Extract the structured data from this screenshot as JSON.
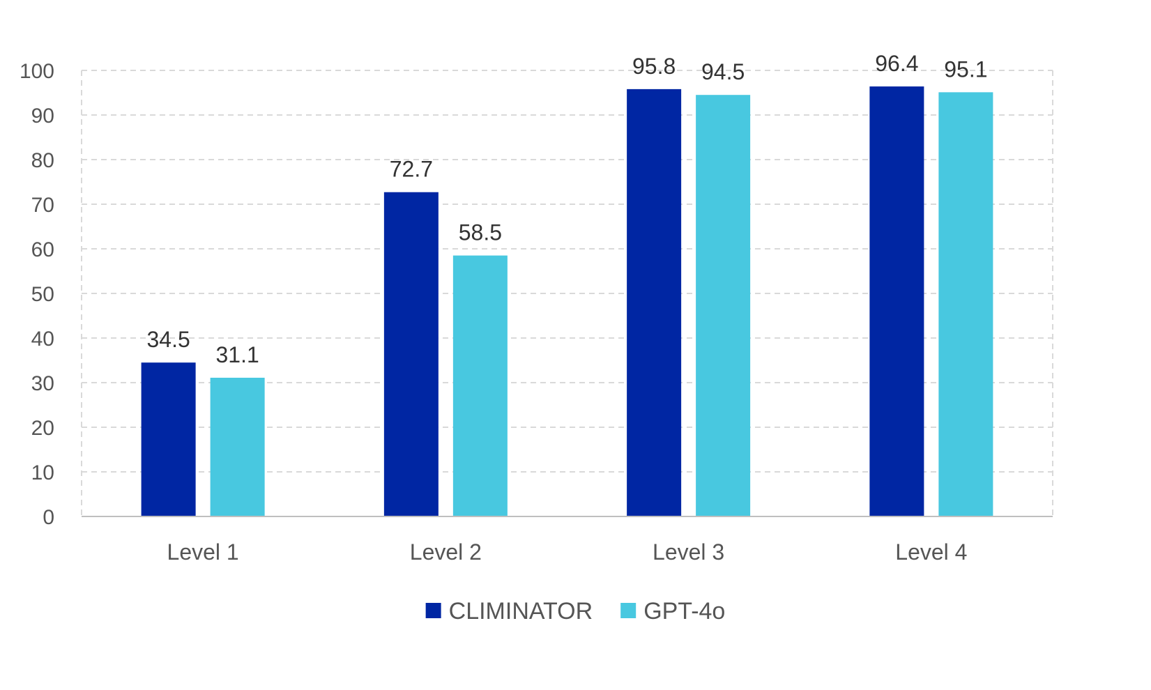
{
  "chart_data": {
    "type": "bar",
    "categories": [
      "Level 1",
      "Level 2",
      "Level 3",
      "Level 4"
    ],
    "series": [
      {
        "name": "CLIMINATOR",
        "values": [
          34.5,
          72.7,
          95.8,
          96.4
        ],
        "color": "#0026a3"
      },
      {
        "name": "GPT-4o",
        "values": [
          31.1,
          58.5,
          94.5,
          95.1
        ],
        "color": "#48c8e0"
      }
    ],
    "ylim": [
      0,
      100
    ],
    "yticks": [
      0,
      10,
      20,
      30,
      40,
      50,
      60,
      70,
      80,
      90,
      100
    ],
    "grid": true,
    "legend_position": "bottom-center",
    "colors": {
      "grid": "#d9d9d9",
      "axis": "#bfbfbf"
    }
  }
}
